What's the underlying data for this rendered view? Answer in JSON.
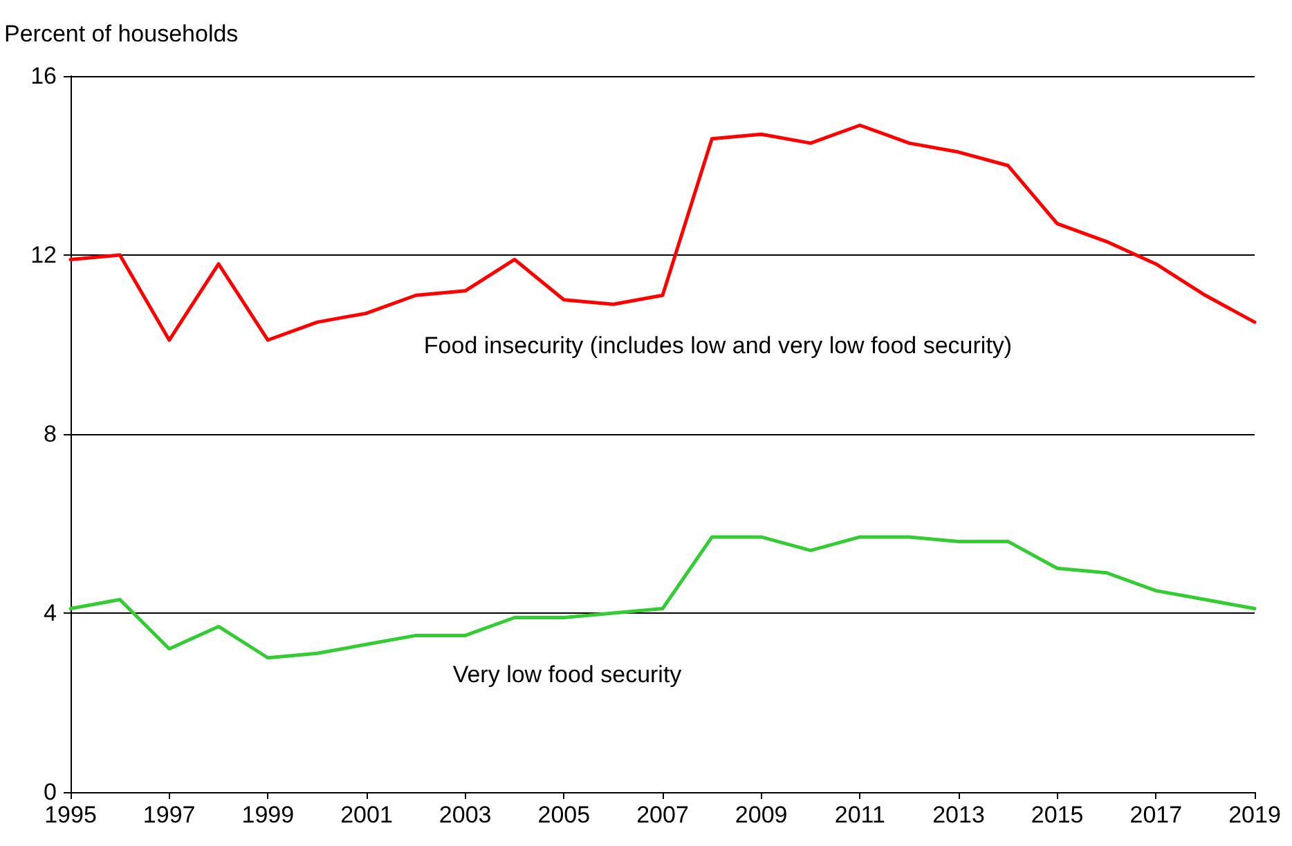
{
  "chart_data": {
    "type": "line",
    "ylabel": "Percent of households",
    "x": [
      1995,
      1996,
      1997,
      1998,
      1999,
      2000,
      2001,
      2002,
      2003,
      2004,
      2005,
      2006,
      2007,
      2008,
      2009,
      2010,
      2011,
      2012,
      2013,
      2014,
      2015,
      2016,
      2017,
      2018,
      2019
    ],
    "series": [
      {
        "color": "#ff0000",
        "values": [
          11.9,
          12.0,
          10.1,
          11.8,
          10.1,
          10.5,
          10.7,
          11.1,
          11.2,
          11.9,
          11.0,
          10.9,
          11.1,
          14.6,
          14.7,
          14.5,
          14.9,
          14.5,
          14.3,
          14.0,
          12.7,
          12.3,
          11.8,
          11.1,
          10.5
        ]
      },
      {
        "color": "#33cc33",
        "values": [
          4.1,
          4.3,
          3.2,
          3.7,
          3.0,
          3.1,
          3.3,
          3.5,
          3.5,
          3.9,
          3.9,
          4.0,
          4.1,
          5.7,
          5.7,
          5.4,
          5.7,
          5.7,
          5.6,
          5.6,
          5.0,
          4.9,
          4.5,
          4.3,
          4.1
        ]
      }
    ],
    "annotations": [
      "Food insecurity (includes low and very low food security)",
      "Very low food security"
    ],
    "xlim": [
      1995,
      2019
    ],
    "xticks": [
      1995,
      1997,
      1999,
      2001,
      2003,
      2005,
      2007,
      2009,
      2011,
      2013,
      2015,
      2017,
      2019
    ],
    "ylim": [
      0,
      16
    ],
    "yticks": [
      0,
      4,
      8,
      12,
      16
    ],
    "grid": "y",
    "marker": "none",
    "line_style": "solid"
  }
}
